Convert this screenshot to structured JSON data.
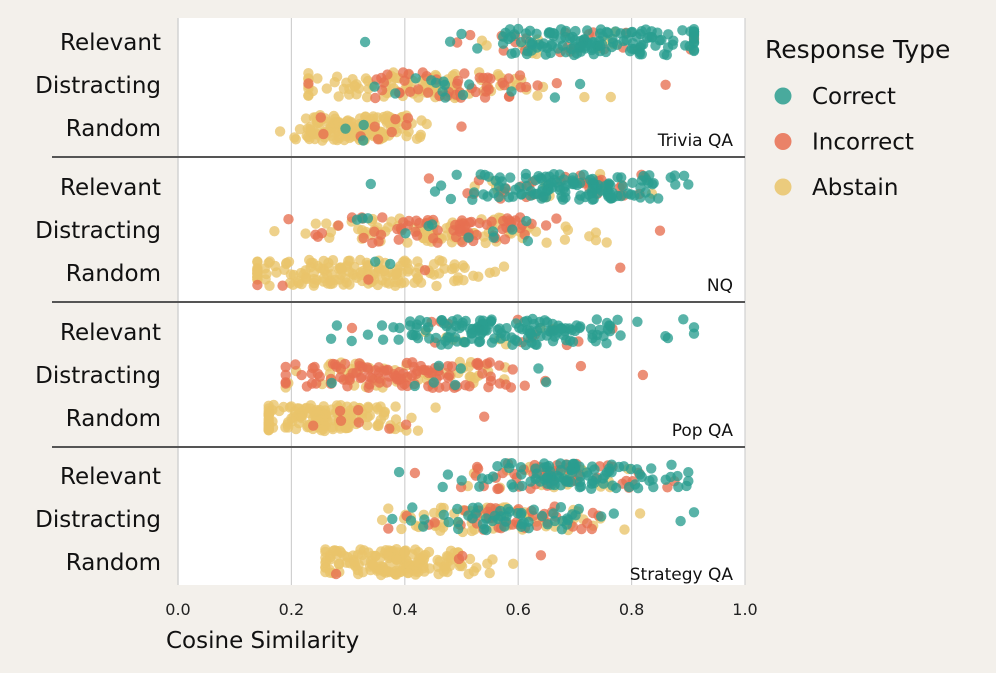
{
  "chart_data": {
    "type": "scatter",
    "subtype": "jittered strip plot",
    "xlabel": "Cosine Similarity",
    "xlim": [
      0.0,
      1.0
    ],
    "xticks": [
      0.0,
      0.2,
      0.4,
      0.6,
      0.8,
      1.0
    ],
    "xtick_labels": [
      "0.0",
      "0.2",
      "0.4",
      "0.6",
      "0.8",
      "1.0"
    ],
    "grid": "vertical",
    "row_labels": [
      "Relevant",
      "Distracting",
      "Random"
    ],
    "legend": {
      "title": "Response Type",
      "placement": "right",
      "entries": [
        {
          "name": "Correct",
          "color": "#2a9d8f"
        },
        {
          "name": "Incorrect",
          "color": "#e76f51"
        },
        {
          "name": "Abstain",
          "color": "#e9c46a"
        }
      ]
    },
    "datasets": [
      {
        "name": "Trivia QA",
        "rows": [
          {
            "context": "Relevant",
            "min": 0.33,
            "max": 0.91,
            "mean": 0.7,
            "composition": {
              "Correct": 0.82,
              "Incorrect": 0.12,
              "Abstain": 0.06
            }
          },
          {
            "context": "Distracting",
            "min": 0.23,
            "max": 0.86,
            "mean": 0.46,
            "composition": {
              "Correct": 0.1,
              "Incorrect": 0.3,
              "Abstain": 0.6
            }
          },
          {
            "context": "Random",
            "min": 0.18,
            "max": 0.5,
            "mean": 0.32,
            "composition": {
              "Correct": 0.02,
              "Incorrect": 0.03,
              "Abstain": 0.95
            }
          }
        ]
      },
      {
        "name": "NQ",
        "rows": [
          {
            "context": "Relevant",
            "min": 0.34,
            "max": 0.9,
            "mean": 0.66,
            "composition": {
              "Correct": 0.75,
              "Incorrect": 0.2,
              "Abstain": 0.05
            }
          },
          {
            "context": "Distracting",
            "min": 0.17,
            "max": 0.85,
            "mean": 0.47,
            "composition": {
              "Correct": 0.08,
              "Incorrect": 0.42,
              "Abstain": 0.5
            }
          },
          {
            "context": "Random",
            "min": 0.14,
            "max": 0.78,
            "mean": 0.31,
            "composition": {
              "Correct": 0.02,
              "Incorrect": 0.02,
              "Abstain": 0.96
            }
          }
        ]
      },
      {
        "name": "Pop QA",
        "rows": [
          {
            "context": "Relevant",
            "min": 0.27,
            "max": 0.91,
            "mean": 0.55,
            "composition": {
              "Correct": 0.8,
              "Incorrect": 0.12,
              "Abstain": 0.08
            }
          },
          {
            "context": "Distracting",
            "min": 0.19,
            "max": 0.82,
            "mean": 0.38,
            "composition": {
              "Correct": 0.06,
              "Incorrect": 0.64,
              "Abstain": 0.3
            }
          },
          {
            "context": "Random",
            "min": 0.16,
            "max": 0.54,
            "mean": 0.25,
            "composition": {
              "Correct": 0.01,
              "Incorrect": 0.04,
              "Abstain": 0.95
            }
          }
        ]
      },
      {
        "name": "Strategy QA",
        "rows": [
          {
            "context": "Relevant",
            "min": 0.39,
            "max": 0.9,
            "mean": 0.66,
            "composition": {
              "Correct": 0.58,
              "Incorrect": 0.27,
              "Abstain": 0.15
            }
          },
          {
            "context": "Distracting",
            "min": 0.36,
            "max": 0.91,
            "mean": 0.55,
            "composition": {
              "Correct": 0.3,
              "Incorrect": 0.25,
              "Abstain": 0.45
            }
          },
          {
            "context": "Random",
            "min": 0.26,
            "max": 0.64,
            "mean": 0.39,
            "composition": {
              "Correct": 0.0,
              "Incorrect": 0.02,
              "Abstain": 0.98
            }
          }
        ]
      }
    ]
  }
}
